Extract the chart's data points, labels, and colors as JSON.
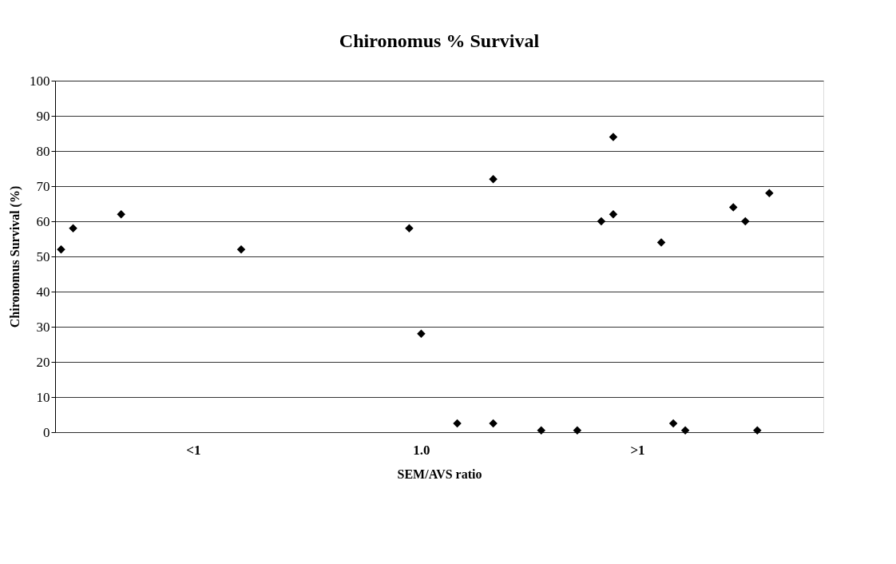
{
  "chart_data": {
    "type": "scatter",
    "title": "Chironomus % Survival",
    "xlabel": "SEM/AVS ratio",
    "ylabel": "Chironomus Survival (%)",
    "categories": [
      null,
      null,
      null,
      null,
      null,
      null,
      null,
      null,
      null,
      null,
      null,
      "<1",
      null,
      null,
      null,
      null,
      null,
      null,
      null,
      null,
      null,
      null,
      null,
      null,
      null,
      null,
      null,
      null,
      null,
      null,
      "1.0",
      null,
      null,
      null,
      null,
      null,
      null,
      null,
      null,
      null,
      null,
      null,
      null,
      null,
      null,
      null,
      null,
      null,
      ">1",
      null,
      null,
      null,
      null,
      null,
      null,
      null,
      null,
      null,
      null,
      null,
      null,
      null,
      null,
      null
    ],
    "series": [
      {
        "color": "#000000",
        "values": [
          52,
          58,
          null,
          null,
          null,
          62,
          null,
          null,
          null,
          null,
          null,
          null,
          null,
          null,
          null,
          52,
          null,
          null,
          null,
          null,
          null,
          null,
          null,
          null,
          null,
          null,
          null,
          null,
          null,
          58,
          28,
          null,
          null,
          2.5,
          null,
          null,
          72,
          null,
          null,
          null,
          0.5,
          null,
          null,
          0.5,
          null,
          60,
          84,
          null,
          null,
          null,
          54,
          2.5,
          0.5,
          null,
          null,
          null,
          64,
          60,
          0.5,
          68,
          null,
          null,
          null,
          null
        ]
      },
      {
        "color": "#000000",
        "values": [
          null,
          null,
          null,
          null,
          null,
          null,
          null,
          null,
          null,
          null,
          null,
          null,
          null,
          null,
          null,
          null,
          null,
          null,
          null,
          null,
          null,
          null,
          null,
          null,
          null,
          null,
          null,
          null,
          null,
          null,
          null,
          null,
          null,
          null,
          null,
          null,
          2.5,
          null,
          null,
          null,
          null,
          null,
          null,
          null,
          null,
          null,
          62,
          null,
          null,
          null,
          null,
          null,
          null,
          null,
          null,
          null,
          null,
          null,
          null,
          null,
          null,
          null,
          null,
          null
        ]
      }
    ],
    "ylim": [
      0,
      100
    ],
    "yticks": [
      0,
      10,
      20,
      30,
      40,
      50,
      60,
      70,
      80,
      90,
      100
    ],
    "grid": "y",
    "marker": "diamond",
    "legend": false
  }
}
